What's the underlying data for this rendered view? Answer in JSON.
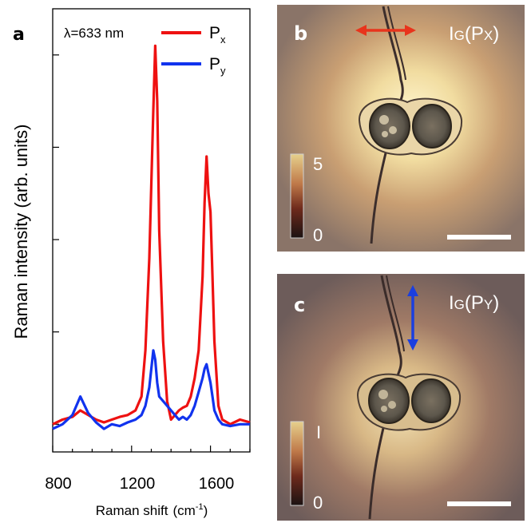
{
  "chart_data": [
    {
      "panel": "a",
      "type": "line",
      "annotation": "λ=633 nm",
      "xlabel": "Raman shift",
      "xlabel_unit": "(cm",
      "xlabel_unit_sup": "-1",
      "xlabel_unit_close": ")",
      "ylabel": "Raman intensity (arb. units)",
      "xlim": [
        800,
        1800
      ],
      "ylim": [
        -0.3,
        4.5
      ],
      "xticks": [
        "800",
        "1200",
        "1600"
      ],
      "yticks_shown_as_marks_only": true,
      "grid": false,
      "legend_position": "top-right",
      "series": [
        {
          "name": "P",
          "name_sub": "x",
          "color": "#ee1111",
          "x": [
            800,
            850,
            900,
            940,
            980,
            1020,
            1060,
            1100,
            1140,
            1180,
            1220,
            1250,
            1270,
            1290,
            1300,
            1310,
            1320,
            1330,
            1340,
            1360,
            1380,
            1400,
            1420,
            1440,
            1460,
            1480,
            1500,
            1520,
            1540,
            1560,
            1570,
            1580,
            1590,
            1600,
            1610,
            1620,
            1640,
            1660,
            1700,
            1750,
            1800
          ],
          "y": [
            0.0,
            0.05,
            0.08,
            0.15,
            0.1,
            0.05,
            0.02,
            0.05,
            0.08,
            0.1,
            0.15,
            0.3,
            0.8,
            1.8,
            2.6,
            3.4,
            4.1,
            3.5,
            2.1,
            0.9,
            0.25,
            0.05,
            0.1,
            0.15,
            0.18,
            0.2,
            0.3,
            0.5,
            0.8,
            1.6,
            2.4,
            2.9,
            2.5,
            2.3,
            1.6,
            0.9,
            0.2,
            0.05,
            0.0,
            0.05,
            0.02
          ]
        },
        {
          "name": "P",
          "name_sub": "y",
          "color": "#1133ee",
          "x": [
            800,
            850,
            900,
            940,
            980,
            1020,
            1060,
            1100,
            1140,
            1180,
            1220,
            1250,
            1270,
            1290,
            1300,
            1310,
            1320,
            1330,
            1340,
            1360,
            1380,
            1400,
            1420,
            1440,
            1460,
            1480,
            1500,
            1520,
            1540,
            1560,
            1570,
            1580,
            1590,
            1600,
            1610,
            1620,
            1640,
            1660,
            1700,
            1750,
            1800
          ],
          "y": [
            -0.05,
            0.0,
            0.1,
            0.3,
            0.12,
            0.02,
            -0.05,
            0.0,
            -0.02,
            0.02,
            0.05,
            0.1,
            0.2,
            0.4,
            0.6,
            0.8,
            0.7,
            0.45,
            0.3,
            0.25,
            0.2,
            0.15,
            0.1,
            0.05,
            0.08,
            0.05,
            0.1,
            0.2,
            0.35,
            0.5,
            0.6,
            0.65,
            0.55,
            0.45,
            0.3,
            0.15,
            0.05,
            0.0,
            -0.02,
            0.0,
            0.0
          ]
        }
      ]
    }
  ],
  "panels": {
    "b": {
      "label": "b",
      "title_main": "I",
      "title_sub": "G",
      "title_paren": "(P",
      "title_sub2": "X",
      "title_close": ")",
      "arrow": "horizontal",
      "arrow_color": "#e8341c",
      "colorbar_max": "5",
      "colorbar_min": "0"
    },
    "c": {
      "label": "c",
      "title_main": "I",
      "title_sub": "G",
      "title_paren": "(P",
      "title_sub2": "Y",
      "title_close": ")",
      "arrow": "vertical",
      "arrow_color": "#1a3fe0",
      "colorbar_max": "I",
      "colorbar_min": "0"
    }
  }
}
